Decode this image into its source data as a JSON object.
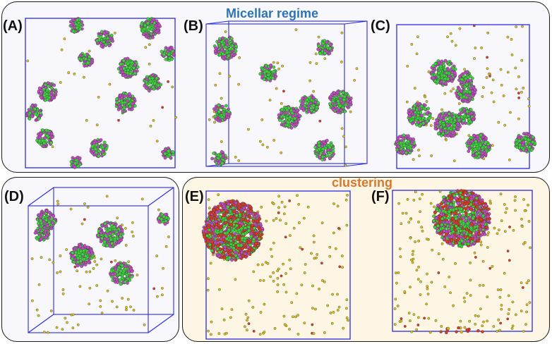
{
  "groups": {
    "micellar_label": "Micellar regime",
    "clustering_label": "clustering"
  },
  "panels": [
    {
      "id": "A",
      "label": "(A)",
      "solvent": "sparse",
      "box_style": "flat"
    },
    {
      "id": "B",
      "label": "(B)",
      "solvent": "medium",
      "box_style": "perspective"
    },
    {
      "id": "C",
      "label": "(C)",
      "solvent": "medium",
      "box_style": "flat"
    },
    {
      "id": "D",
      "label": "(D)",
      "solvent": "medium",
      "box_style": "perspective"
    },
    {
      "id": "E",
      "label": "(E)",
      "solvent": "dense",
      "box_style": "flat"
    },
    {
      "id": "F",
      "label": "(F)",
      "solvent": "dense",
      "box_style": "flat"
    }
  ],
  "colors": {
    "box_edge": "#2a2ae0",
    "bead_hydrophobic": "#3ed13e",
    "bead_headgroup": "#c04ac0",
    "bead_solvent": "#d8c21a",
    "bead_red": "#d83a22",
    "bead_cyan": "#40c8c8",
    "micellar_text": "#2e74b5",
    "clustering_text": "#d9772a"
  }
}
